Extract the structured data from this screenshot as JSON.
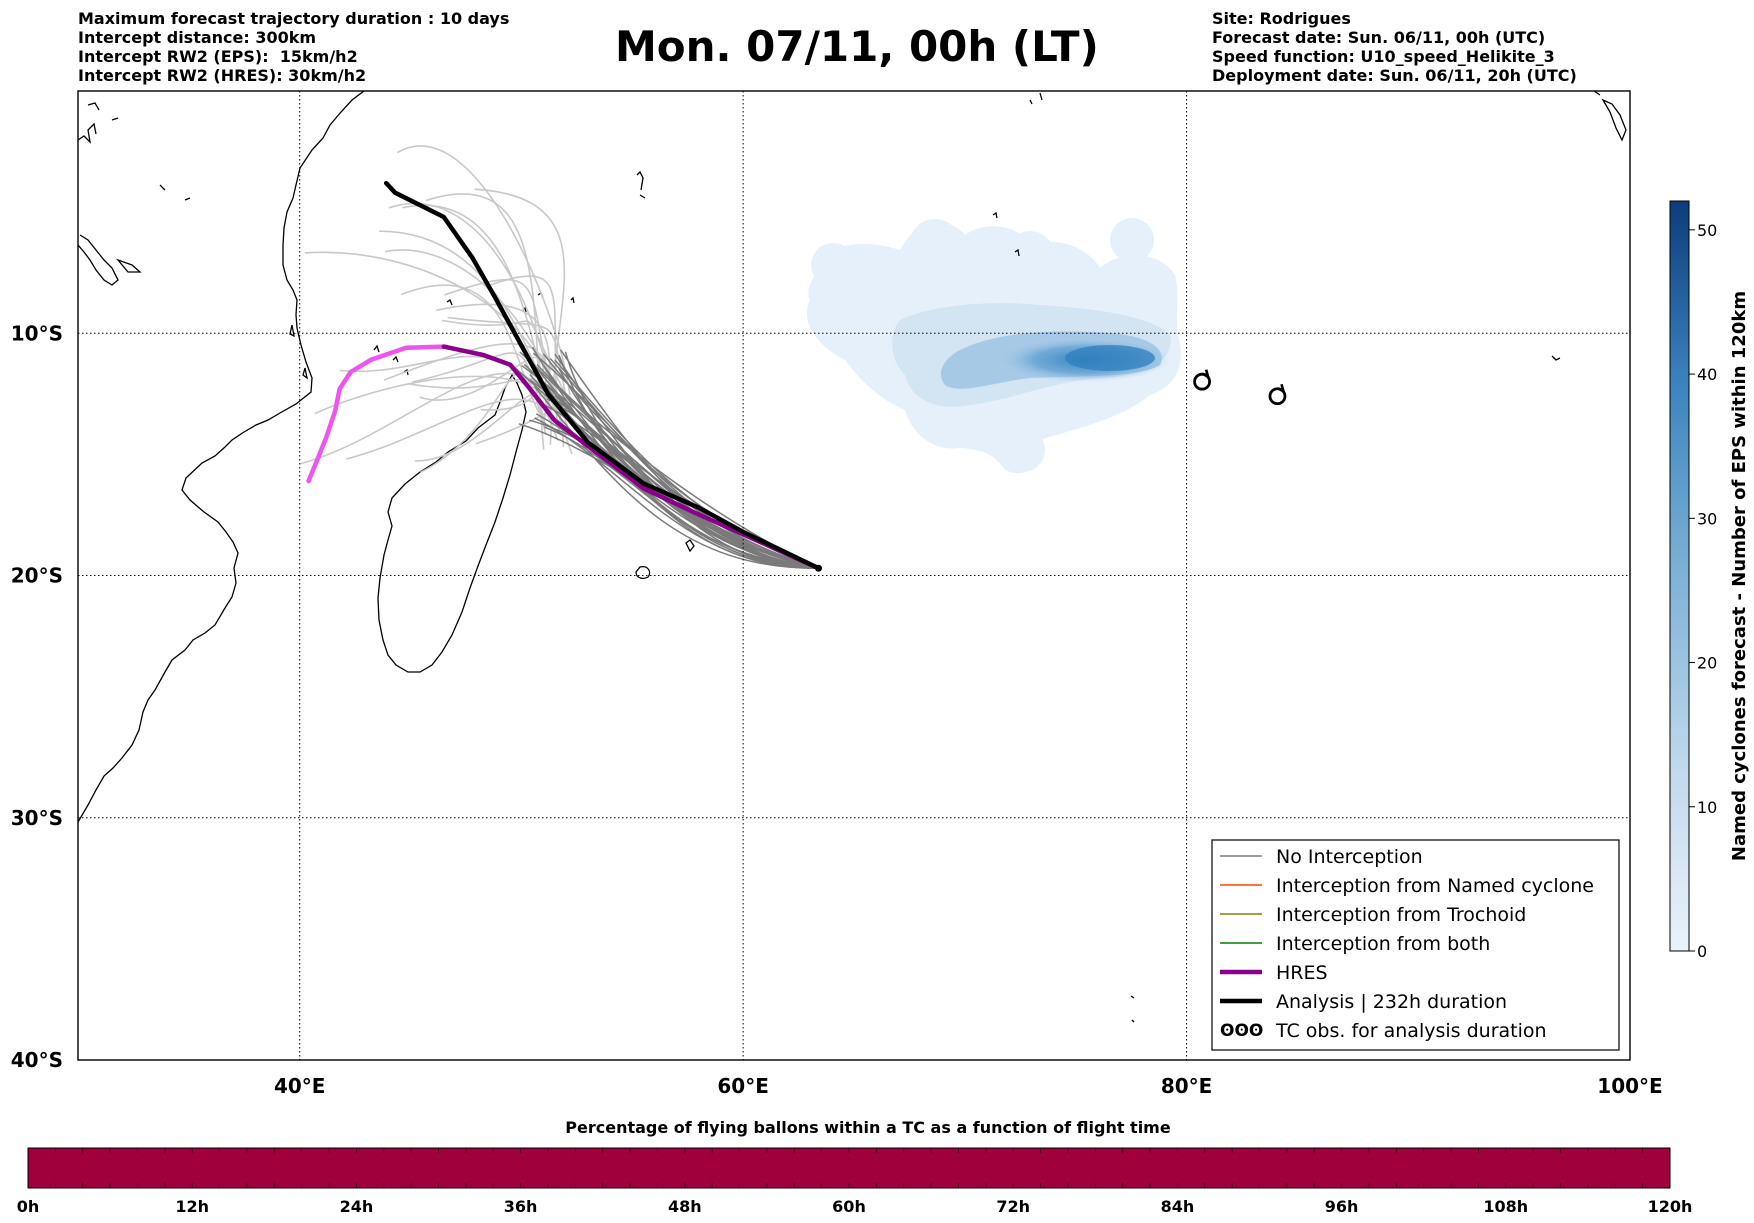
{
  "header": {
    "left_lines": [
      "Maximum forecast trajectory duration : 10 days",
      "Intercept distance: 300km",
      "Intercept RW2 (EPS):  15km/h2",
      "Intercept RW2 (HRES): 30km/h2"
    ],
    "title": "Mon. 07/11, 00h (LT)",
    "right_lines": [
      "Site: Rodrigues",
      "Forecast date: Sun. 06/11, 00h (UTC)",
      "Speed function: U10_speed_Helikite_3",
      "Deployment date: Sun. 06/11, 20h (UTC)"
    ]
  },
  "map": {
    "lon_range": [
      30,
      100
    ],
    "lat_range": [
      -40,
      0
    ],
    "lat_ticks": [
      {
        "value": -10,
        "label": "10°S"
      },
      {
        "value": -20,
        "label": "20°S"
      },
      {
        "value": -30,
        "label": "30°S"
      },
      {
        "value": -40,
        "label": "40°S"
      }
    ],
    "lon_ticks": [
      {
        "value": 40,
        "label": "40°E"
      },
      {
        "value": 60,
        "label": "60°E"
      },
      {
        "value": 80,
        "label": "80°E"
      },
      {
        "value": 100,
        "label": "100°E"
      }
    ],
    "colors": {
      "no_interception": "#7a7a7a",
      "eps_light": "#c8c8c8",
      "named_cyclone": "#ff4500",
      "trochoid": "#808000",
      "both": "#008000",
      "hres": "#8b008b",
      "hres_future": "#ee55ee",
      "analysis": "#000000",
      "flight_bar": "#a0003c"
    },
    "deployment_point": {
      "lon": 63.4,
      "lat": -19.7
    },
    "analysis_track": [
      [
        63.4,
        -19.7
      ],
      [
        60,
        -18.2
      ],
      [
        58,
        -17.2
      ],
      [
        55.5,
        -16.2
      ],
      [
        53,
        -14.5
      ],
      [
        51.2,
        -12.5
      ],
      [
        50,
        -10.5
      ],
      [
        48.8,
        -8.5
      ],
      [
        47.8,
        -6.9
      ],
      [
        46.5,
        -5.2
      ],
      [
        44.3,
        -4.2
      ],
      [
        43.9,
        -3.8
      ]
    ],
    "hres_track": [
      [
        63.4,
        -19.7
      ],
      [
        60,
        -18.3
      ],
      [
        57.8,
        -17.4
      ],
      [
        55.5,
        -16.4
      ],
      [
        53.2,
        -14.8
      ],
      [
        51.5,
        -13.6
      ],
      [
        50.3,
        -12.2
      ],
      [
        49.5,
        -11.3
      ],
      [
        48.3,
        -10.9
      ],
      [
        46.5,
        -10.55
      ],
      [
        44.8,
        -10.6
      ],
      [
        43.2,
        -11.1
      ],
      [
        42.3,
        -11.6
      ],
      [
        41.8,
        -12.3
      ],
      [
        41.6,
        -13.2
      ],
      [
        41.2,
        -14.3
      ],
      [
        40.8,
        -15.2
      ],
      [
        40.4,
        -16.1
      ]
    ],
    "hres_future_from_index": 9,
    "tc_observations": [
      {
        "lon": 80.7,
        "lat": -12.0
      },
      {
        "lon": 84.1,
        "lat": -12.6
      }
    ]
  },
  "legend": {
    "items": [
      {
        "label": "No Interception",
        "style": "no_interception"
      },
      {
        "label": "Interception from Named cyclone",
        "style": "named_cyclone"
      },
      {
        "label": "Interception from Trochoid",
        "style": "trochoid"
      },
      {
        "label": "Interception from both",
        "style": "both"
      },
      {
        "label": "HRES",
        "style": "hres"
      },
      {
        "label": "Analysis | 232h duration",
        "style": "analysis"
      },
      {
        "label": "TC obs. for analysis duration",
        "style": "tc_obs"
      }
    ],
    "tc_symbol": "ʘʘʘ"
  },
  "density_colorbar": {
    "label": "Named cyclones forecast - Number of EPS within 120km",
    "min": 0,
    "max": 52,
    "ticks": [
      0,
      10,
      20,
      30,
      40,
      50
    ]
  },
  "flight_time_bar": {
    "title": "Percentage of flying ballons within a TC as a function of flight time",
    "ticks": [
      "0h",
      "12h",
      "24h",
      "36h",
      "48h",
      "60h",
      "72h",
      "84h",
      "96h",
      "108h",
      "120h"
    ]
  }
}
